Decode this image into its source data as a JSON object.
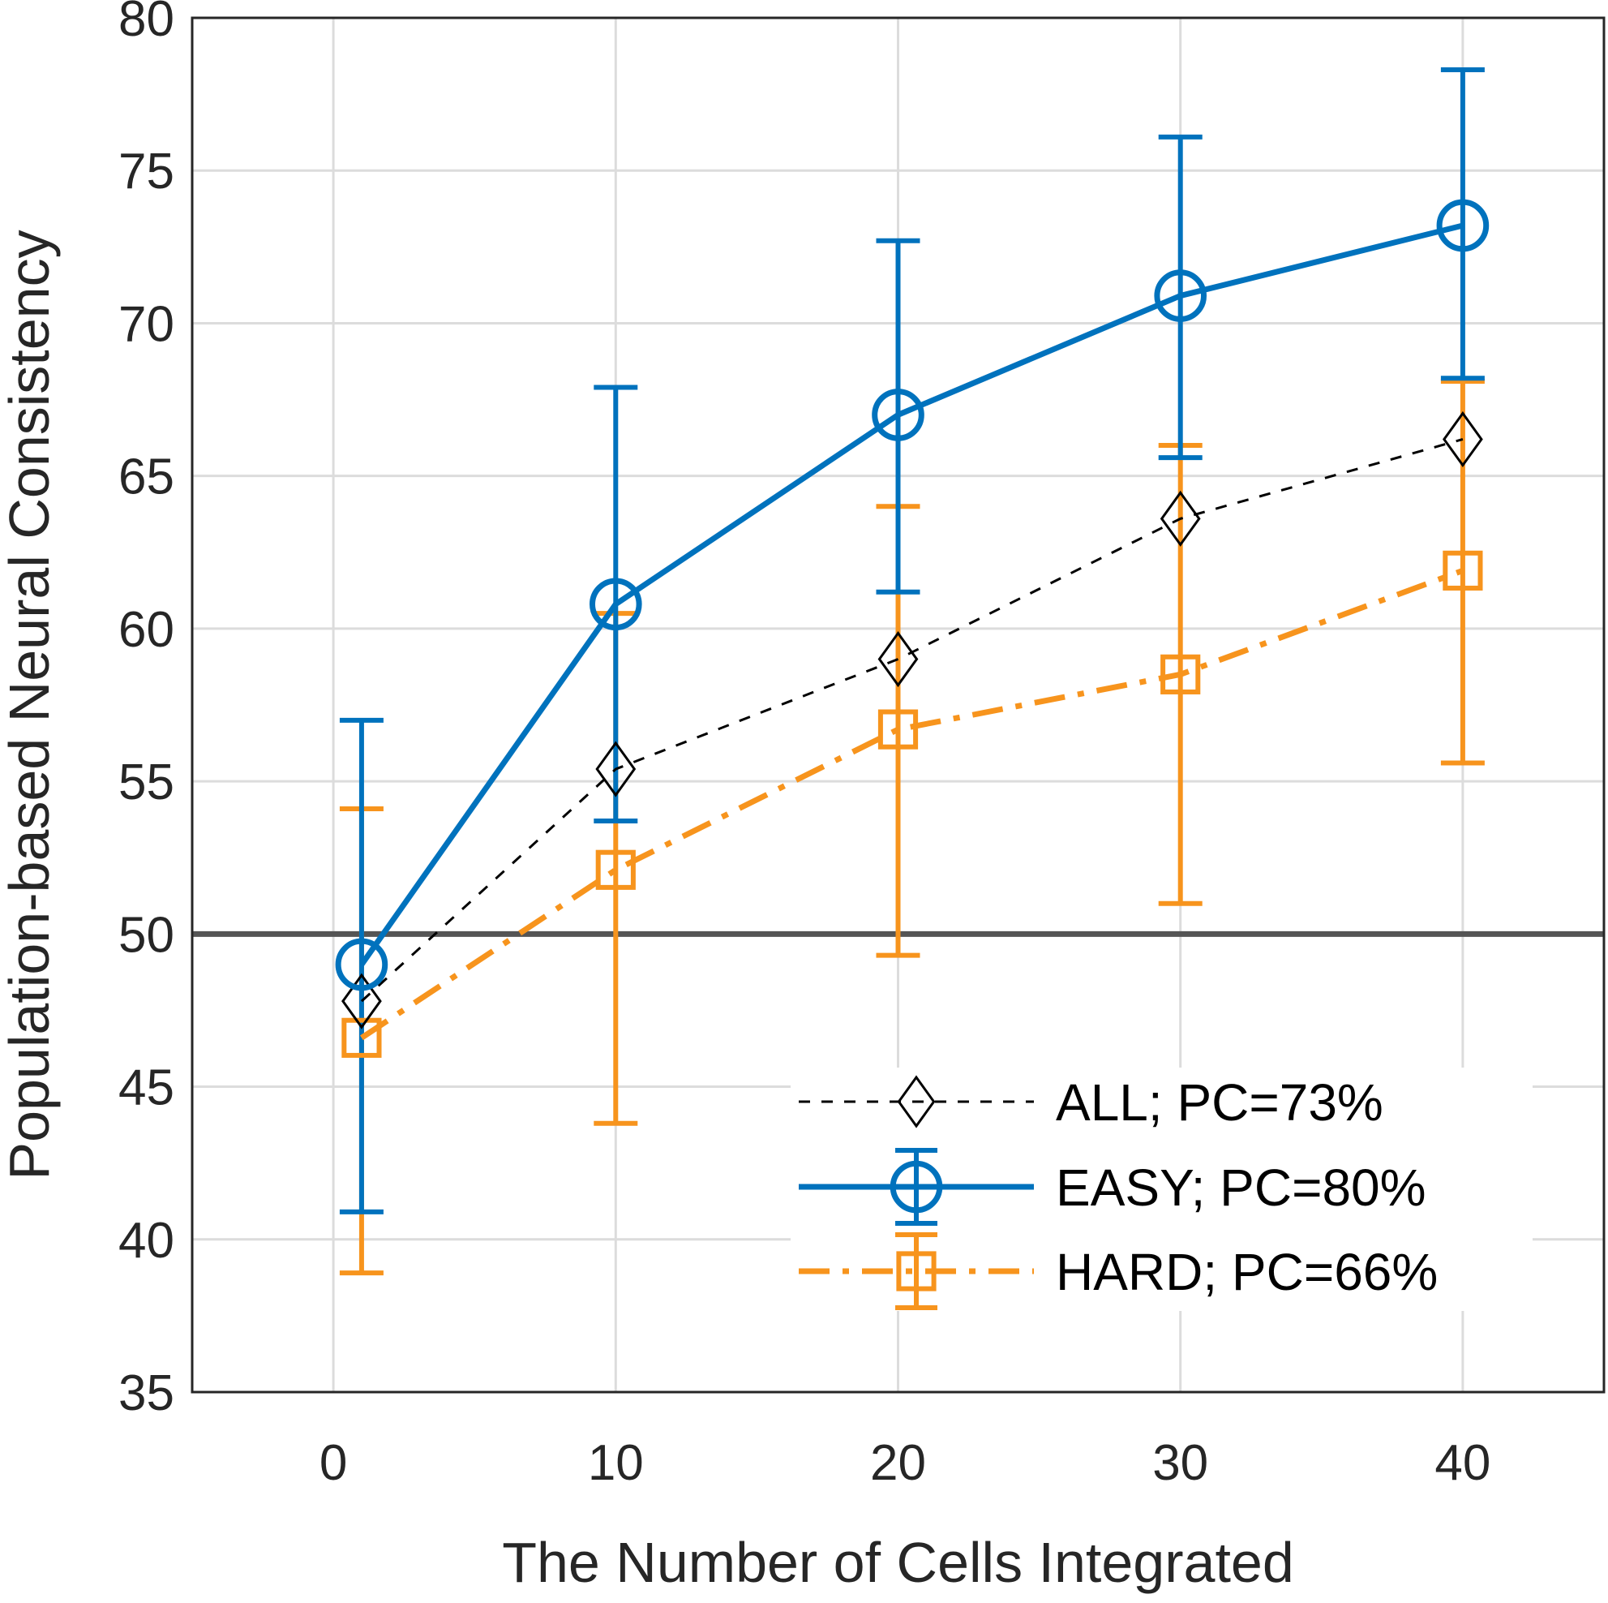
{
  "chart_data": {
    "type": "line",
    "title": "",
    "xlabel": "The Number of Cells Integrated",
    "ylabel": "Population-based Neural Consistency",
    "xlim": [
      -5,
      45
    ],
    "ylim": [
      35,
      80
    ],
    "xticks": [
      0,
      10,
      20,
      30,
      40
    ],
    "yticks": [
      35,
      40,
      45,
      50,
      55,
      60,
      65,
      70,
      75,
      80
    ],
    "grid": true,
    "legend_position": "bottom-right",
    "reference_line": {
      "y": 50,
      "color": "#555555"
    },
    "series": [
      {
        "name": "ALL; PC=73%",
        "color": "#000000",
        "marker": "diamond",
        "line_style": "dashed",
        "x": [
          1,
          10,
          20,
          30,
          40
        ],
        "y": [
          47.8,
          55.4,
          59.0,
          63.6,
          66.2
        ]
      },
      {
        "name": "EASY; PC=80%",
        "color": "#0072BD",
        "marker": "circle",
        "line_style": "solid",
        "x": [
          1,
          10,
          20,
          30,
          40
        ],
        "y": [
          49.0,
          60.8,
          67.0,
          70.9,
          73.2
        ],
        "err_low": [
          40.9,
          53.7,
          61.2,
          65.6,
          68.2
        ],
        "err_high": [
          57.0,
          67.9,
          72.7,
          76.1,
          78.3
        ]
      },
      {
        "name": "HARD; PC=66%",
        "color": "#F7941D",
        "marker": "square",
        "line_style": "dash-dot",
        "x": [
          1,
          10,
          20,
          30,
          40
        ],
        "y": [
          46.6,
          52.1,
          56.7,
          58.5,
          61.9
        ],
        "err_low": [
          38.9,
          43.8,
          49.3,
          51.0,
          55.6
        ],
        "err_high": [
          54.1,
          60.5,
          64.0,
          66.0,
          68.1
        ]
      }
    ]
  }
}
